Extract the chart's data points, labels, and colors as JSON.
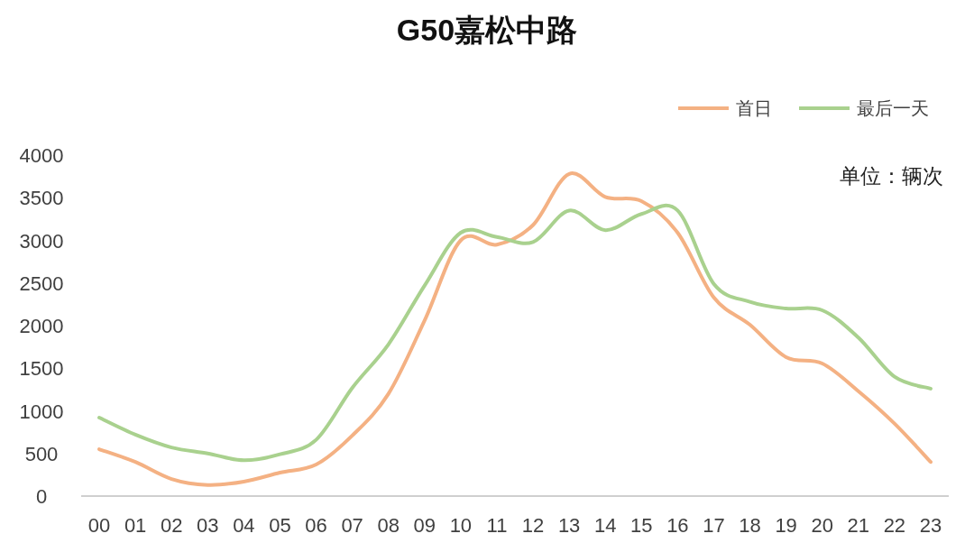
{
  "chart_data": {
    "type": "line",
    "title": "G50嘉松中路",
    "categories": [
      "00",
      "01",
      "02",
      "03",
      "04",
      "05",
      "06",
      "07",
      "08",
      "09",
      "10",
      "11",
      "12",
      "13",
      "14",
      "15",
      "16",
      "17",
      "18",
      "19",
      "20",
      "21",
      "22",
      "23"
    ],
    "series": [
      {
        "name": "首日",
        "color": "#f4b183",
        "values": [
          550,
          400,
          200,
          130,
          170,
          275,
          370,
          710,
          1200,
          2060,
          3000,
          2950,
          3180,
          3780,
          3510,
          3460,
          3090,
          2330,
          2010,
          1630,
          1555,
          1230,
          850,
          400
        ]
      },
      {
        "name": "最后一天",
        "color": "#a9d18e",
        "values": [
          920,
          720,
          570,
          500,
          420,
          490,
          660,
          1270,
          1780,
          2470,
          3090,
          3040,
          2980,
          3350,
          3120,
          3310,
          3350,
          2490,
          2280,
          2200,
          2180,
          1860,
          1400,
          1260
        ]
      }
    ],
    "ylim": [
      0,
      4000
    ],
    "yticks": [
      0,
      500,
      1000,
      1500,
      2000,
      2500,
      3000,
      3500,
      4000
    ],
    "grid": false,
    "legend": "top right",
    "annotations": [
      "单位：辆次"
    ]
  }
}
